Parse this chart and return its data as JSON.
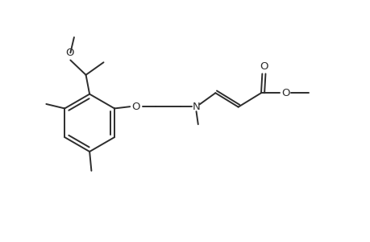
{
  "bg_color": "#ffffff",
  "line_color": "#2d2d2d",
  "lw": 1.4,
  "fs": 9.5,
  "figsize": [
    4.6,
    3.0
  ],
  "dpi": 100,
  "xlim": [
    0,
    10
  ],
  "ylim": [
    0,
    6.5
  ]
}
